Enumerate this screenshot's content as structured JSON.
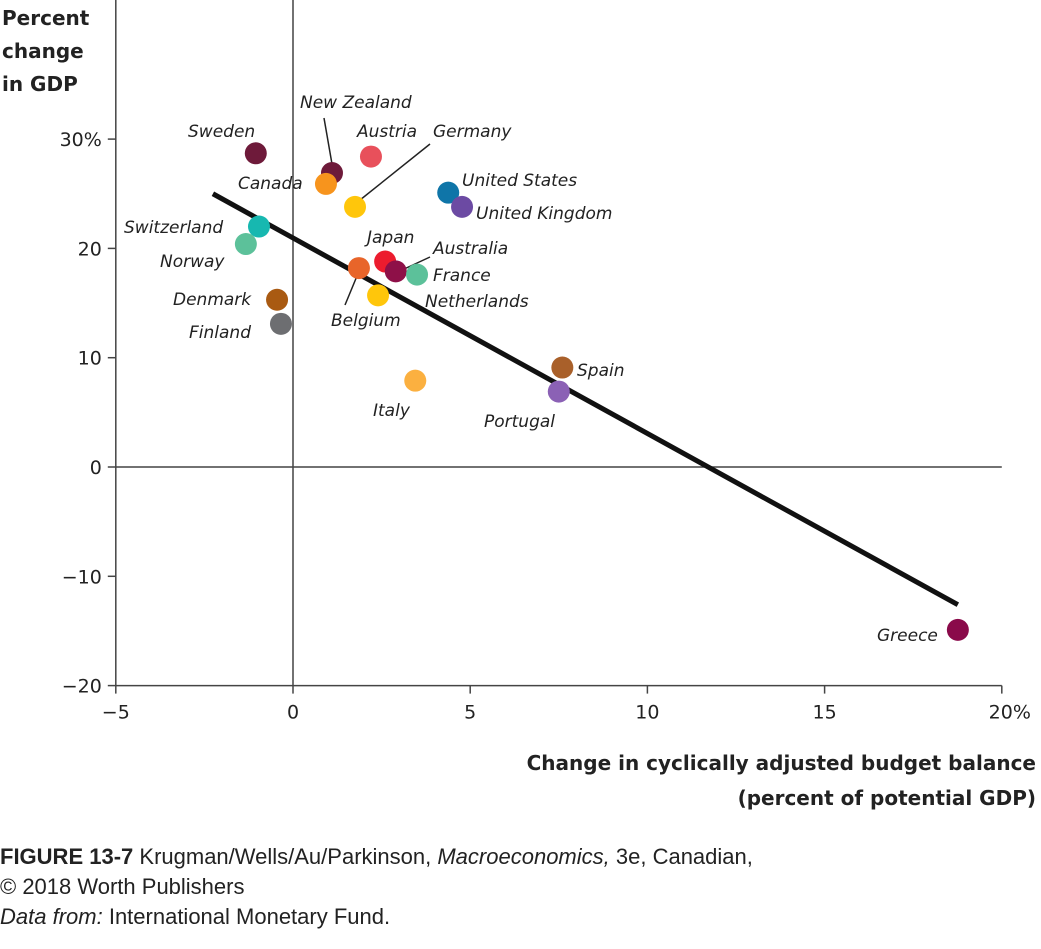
{
  "chart_data": {
    "type": "scatter",
    "title": "",
    "xlabel": [
      "Change in cyclically adjusted budget balance",
      "(percent of potential GDP)"
    ],
    "ylabel": [
      "Percent",
      "change",
      "in GDP"
    ],
    "xlim": [
      -5,
      20
    ],
    "ylim": [
      -20,
      32
    ],
    "xticks": [
      -5,
      0,
      5,
      10,
      15,
      20
    ],
    "xtick_labels": [
      "−5",
      "0",
      "5",
      "10",
      "15",
      "20%"
    ],
    "yticks": [
      -20,
      -10,
      0,
      10,
      20,
      30
    ],
    "ytick_labels": [
      "−20",
      "−10",
      "0",
      "10",
      "20",
      "30%"
    ],
    "grid": false,
    "points": [
      {
        "label": "Sweden",
        "x": -1.05,
        "y": 28.7,
        "color": "#6e1a3a"
      },
      {
        "label": "New Zealand",
        "x": 1.1,
        "y": 26.9,
        "color": "#6e1a3a"
      },
      {
        "label": "Austria",
        "x": 2.2,
        "y": 28.4,
        "color": "#e8505b"
      },
      {
        "label": "Canada",
        "x": 0.93,
        "y": 25.9,
        "color": "#f7941d"
      },
      {
        "label": "Germany",
        "x": 1.75,
        "y": 23.8,
        "color": "#ffc60b"
      },
      {
        "label": "United States",
        "x": 4.38,
        "y": 25.1,
        "color": "#0f75a8"
      },
      {
        "label": "United Kingdom",
        "x": 4.77,
        "y": 23.8,
        "color": "#6c4aa3"
      },
      {
        "label": "Switzerland",
        "x": -0.96,
        "y": 22.0,
        "color": "#17b8b0"
      },
      {
        "label": "Norway",
        "x": -1.33,
        "y": 20.4,
        "color": "#5cc19a"
      },
      {
        "label": "Japan",
        "x": 2.6,
        "y": 18.8,
        "color": "#ec1c2e"
      },
      {
        "label": "Australia",
        "x": 2.9,
        "y": 17.9,
        "color": "#8e1048"
      },
      {
        "label": "France",
        "x": 3.5,
        "y": 17.6,
        "color": "#5cc19a"
      },
      {
        "label": "Belgium",
        "x": 1.86,
        "y": 18.2,
        "color": "#e8652a"
      },
      {
        "label": "Netherlands",
        "x": 2.4,
        "y": 15.7,
        "color": "#ffc60b"
      },
      {
        "label": "Denmark",
        "x": -0.45,
        "y": 15.3,
        "color": "#a95a12"
      },
      {
        "label": "Finland",
        "x": -0.34,
        "y": 13.1,
        "color": "#6d6e71"
      },
      {
        "label": "Italy",
        "x": 3.45,
        "y": 7.9,
        "color": "#fbb040"
      },
      {
        "label": "Spain",
        "x": 7.6,
        "y": 9.1,
        "color": "#a9602a"
      },
      {
        "label": "Portugal",
        "x": 7.5,
        "y": 6.9,
        "color": "#8b61b5"
      },
      {
        "label": "Greece",
        "x": 18.76,
        "y": -14.9,
        "color": "#8a0a4a"
      }
    ],
    "trend_line": {
      "x": [
        -2.26,
        18.76
      ],
      "y": [
        25.0,
        -12.6
      ],
      "color": "#111111"
    }
  },
  "caption": {
    "figure": "FIGURE 13-7",
    "authors": "Krugman/Wells/Au/Parkinson,",
    "book": "Macroeconomics,",
    "edition": "3e, Canadian,",
    "copyright": "© 2018 Worth Publishers",
    "source_label": "Data from:",
    "source": "International Monetary Fund."
  }
}
